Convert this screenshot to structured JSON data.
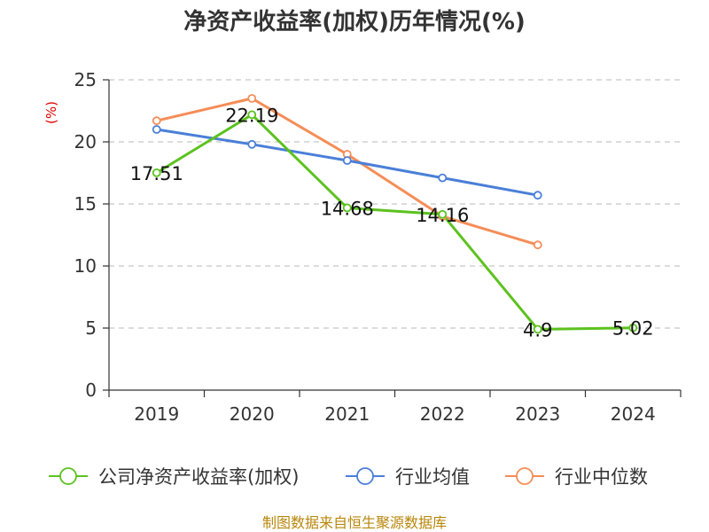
{
  "chart_data": {
    "type": "line",
    "title": "净资产收益率(加权)历年情况(%)",
    "ylabel": "(%)",
    "xlabel": "",
    "categories": [
      "2019",
      "2020",
      "2021",
      "2022",
      "2023",
      "2024"
    ],
    "ylim": [
      0,
      25
    ],
    "yticks": [
      0,
      5,
      10,
      15,
      20,
      25
    ],
    "grid": true,
    "legend_position": "bottom",
    "series": [
      {
        "name": "公司净资产收益率(加权)",
        "color": "#5cc21f",
        "values": [
          17.51,
          22.19,
          14.68,
          14.16,
          4.9,
          5.02
        ],
        "labels": [
          "17.51",
          "22.19",
          "14.68",
          "14.16",
          "4.9",
          "5.02"
        ]
      },
      {
        "name": "行业均值",
        "color": "#4a7fd8",
        "values": [
          21.0,
          19.8,
          18.5,
          17.1,
          15.7,
          null
        ]
      },
      {
        "name": "行业中位数",
        "color": "#f58d57",
        "values": [
          21.7,
          23.5,
          19.0,
          14.0,
          11.7,
          null
        ]
      }
    ],
    "source": "制图数据来自恒生聚源数据库"
  }
}
